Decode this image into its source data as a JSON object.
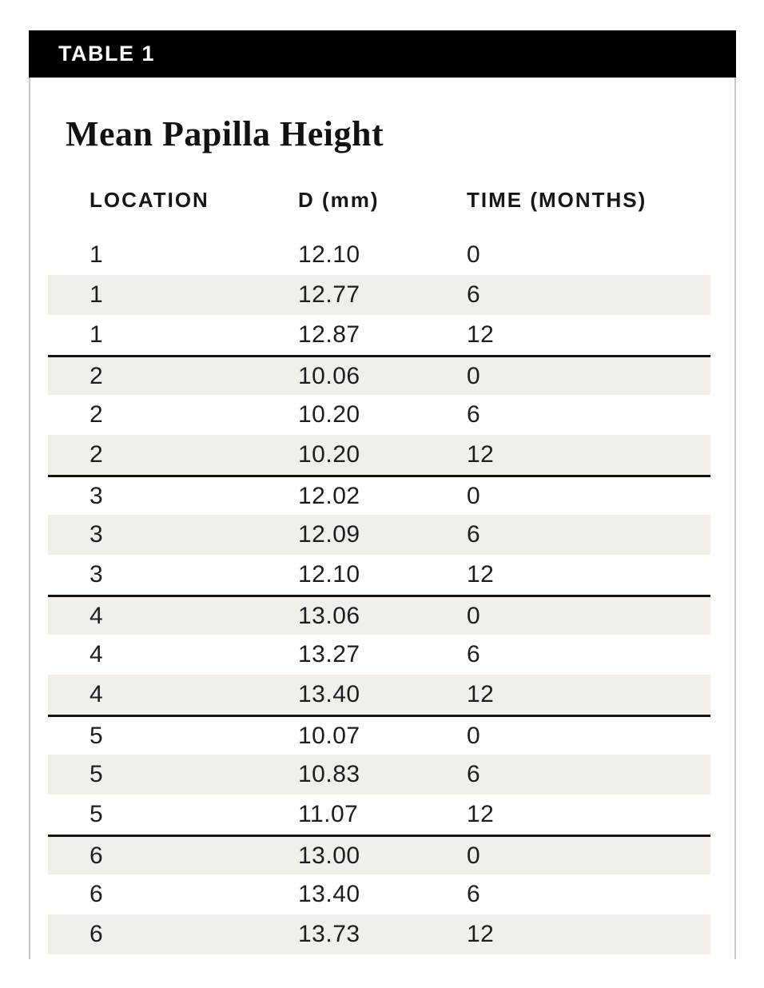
{
  "header": {
    "tag": "TABLE 1"
  },
  "title": "Mean Papilla Height",
  "columns": [
    "LOCATION",
    "D (mm)",
    "TIME (MONTHS)"
  ],
  "rows": [
    [
      "1",
      "12.10",
      "0"
    ],
    [
      "1",
      "12.77",
      "6"
    ],
    [
      "1",
      "12.87",
      "12"
    ],
    [
      "2",
      "10.06",
      "0"
    ],
    [
      "2",
      "10.20",
      "6"
    ],
    [
      "2",
      "10.20",
      "12"
    ],
    [
      "3",
      "12.02",
      "0"
    ],
    [
      "3",
      "12.09",
      "6"
    ],
    [
      "3",
      "12.10",
      "12"
    ],
    [
      "4",
      "13.06",
      "0"
    ],
    [
      "4",
      "13.27",
      "6"
    ],
    [
      "4",
      "13.40",
      "12"
    ],
    [
      "5",
      "10.07",
      "0"
    ],
    [
      "5",
      "10.83",
      "6"
    ],
    [
      "5",
      "11.07",
      "12"
    ],
    [
      "6",
      "13.00",
      "0"
    ],
    [
      "6",
      "13.40",
      "6"
    ],
    [
      "6",
      "13.73",
      "12"
    ]
  ],
  "group_size": 3,
  "colors": {
    "bar_bg": "#000000",
    "bar_text": "#ffffff",
    "row_shade": "#f2efea",
    "divider": "#141414",
    "card_border": "#c9c7c5",
    "text": "#1d1d1d"
  }
}
